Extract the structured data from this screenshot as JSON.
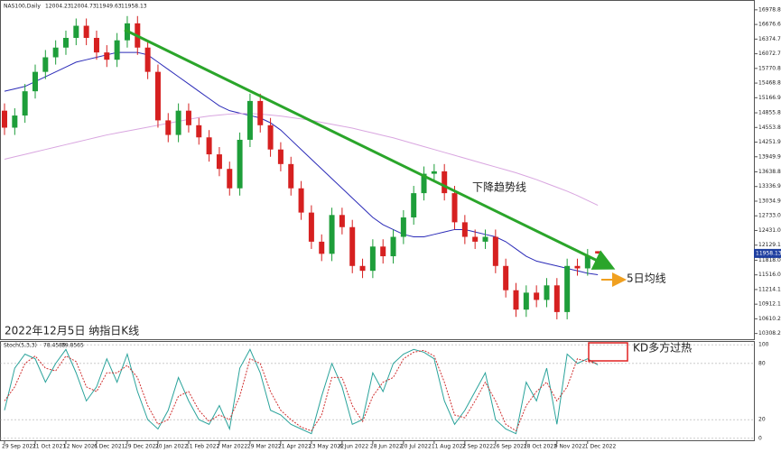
{
  "chart_data": [
    {
      "type": "candlestick",
      "header": "NAS100,Daily",
      "title": "2022年12月5日 纳指日K线",
      "annotations": [
        "下降趋势线",
        "5日均线"
      ],
      "categories": [
        "29 Sep 2021",
        null,
        null,
        "21 Oct 2021",
        null,
        null,
        "12 Nov 2021",
        null,
        null,
        "6 Dec 2021",
        null,
        null,
        "29 Dec 2021",
        null,
        null,
        "20 Jan 2022",
        null,
        null,
        "11 Feb 2022",
        null,
        null,
        "7 Mar 2022",
        null,
        null,
        "29 Mar 2022",
        null,
        null,
        "21 Apr 2022",
        null,
        null,
        "13 May 2022",
        null,
        null,
        "6 Jun 2022",
        null,
        null,
        "28 Jun 2022",
        null,
        null,
        "20 Jul 2022",
        null,
        null,
        "11 Aug 2022",
        null,
        null,
        "2 Sep 2022",
        null,
        null,
        "26 Sep 2022",
        null,
        null,
        "18 Oct 2022",
        null,
        null,
        "9 Nov 2022",
        null,
        null,
        "1 Dec 2022",
        null
      ],
      "open": [
        14900,
        14550,
        14800,
        15300,
        15700,
        16000,
        16200,
        16400,
        16650,
        16400,
        16100,
        15950,
        16350,
        16700,
        16200,
        15700,
        14700,
        14400,
        14900,
        14600,
        14350,
        14000,
        13700,
        13300,
        14300,
        15100,
        14600,
        14100,
        13800,
        13300,
        12800,
        12200,
        11950,
        12750,
        12500,
        11700,
        11600,
        12100,
        11900,
        12300,
        12700,
        13200,
        13600,
        13650,
        13200,
        12600,
        12300,
        12200,
        12300,
        11700,
        11200,
        10800,
        11150,
        11000,
        11300,
        10750,
        11700,
        11650,
        12004.23
      ],
      "high": [
        15050,
        14950,
        15450,
        15850,
        16150,
        16350,
        16550,
        16800,
        16800,
        16550,
        16250,
        16500,
        16850,
        16850,
        16350,
        15850,
        14850,
        15050,
        15050,
        14750,
        14500,
        14150,
        13850,
        14450,
        15250,
        15250,
        14750,
        14250,
        13950,
        13450,
        12950,
        12350,
        12900,
        12900,
        12650,
        11850,
        12250,
        12250,
        12450,
        12850,
        13350,
        13750,
        13800,
        13800,
        13350,
        12750,
        12450,
        12450,
        12450,
        11850,
        11350,
        11300,
        11300,
        11450,
        11450,
        11850,
        11850,
        12050,
        12004.73
      ],
      "low": [
        14400,
        14400,
        14650,
        15150,
        15550,
        15850,
        16050,
        16250,
        16250,
        15950,
        15800,
        15800,
        16200,
        16050,
        15550,
        14550,
        14250,
        14250,
        14450,
        14200,
        13850,
        13550,
        13150,
        13150,
        14150,
        14450,
        13950,
        13650,
        13150,
        12650,
        12050,
        11800,
        11800,
        12350,
        11550,
        11450,
        11450,
        11750,
        11750,
        12150,
        12550,
        13050,
        13450,
        13050,
        12450,
        12150,
        12050,
        12050,
        11550,
        11050,
        10650,
        10650,
        10850,
        10850,
        10600,
        10600,
        11500,
        11500,
        11949.63
      ],
      "close": [
        14550,
        14800,
        15300,
        15700,
        16000,
        16200,
        16400,
        16650,
        16400,
        16100,
        15950,
        16350,
        16700,
        16200,
        15700,
        14700,
        14400,
        14900,
        14600,
        14350,
        14000,
        13700,
        13300,
        14300,
        15100,
        14600,
        14100,
        13800,
        13300,
        12800,
        12200,
        11950,
        12750,
        12500,
        11700,
        11600,
        12100,
        11900,
        12300,
        12700,
        13200,
        13600,
        13650,
        13200,
        12600,
        12300,
        12200,
        12300,
        11700,
        11200,
        10800,
        11150,
        11000,
        11300,
        10750,
        11700,
        11650,
        11900,
        11958.13
      ],
      "up_color": "#1e9e3a",
      "down_color": "#d62020",
      "series": [
        {
          "color": "#2b2bb8",
          "values": [
            15300,
            15350,
            15400,
            15500,
            15600,
            15700,
            15800,
            15900,
            15950,
            16000,
            16050,
            16100,
            16100,
            16100,
            16050,
            15900,
            15750,
            15600,
            15450,
            15300,
            15150,
            15000,
            14900,
            14850,
            14800,
            14750,
            14650,
            14500,
            14300,
            14100,
            13900,
            13700,
            13500,
            13300,
            13100,
            12900,
            12700,
            12550,
            12450,
            12350,
            12300,
            12300,
            12350,
            12400,
            12450,
            12450,
            12400,
            12350,
            12300,
            12200,
            12050,
            11900,
            11800,
            11750,
            11700,
            11650,
            11600,
            11550,
            11520
          ]
        },
        {
          "color": "#d9a6e0",
          "values": [
            13900,
            13950,
            14000,
            14050,
            14100,
            14150,
            14200,
            14250,
            14300,
            14350,
            14400,
            14440,
            14480,
            14520,
            14560,
            14600,
            14640,
            14680,
            14720,
            14760,
            14790,
            14810,
            14830,
            14840,
            14840,
            14830,
            14810,
            14790,
            14760,
            14730,
            14700,
            14660,
            14620,
            14580,
            14540,
            14490,
            14440,
            14390,
            14340,
            14280,
            14220,
            14160,
            14100,
            14040,
            13980,
            13920,
            13860,
            13800,
            13740,
            13680,
            13620,
            13550,
            13480,
            13400,
            13320,
            13240,
            13150,
            13050,
            12950
          ]
        }
      ],
      "ylim": [
        10190,
        17125
      ],
      "yticks": [
        {
          "value": 16978.8,
          "label": "16978.80"
        },
        {
          "value": 16676.65,
          "label": "16676.65"
        },
        {
          "value": 16374.7,
          "label": "16374.70"
        },
        {
          "value": 16072.75,
          "label": "16072.75"
        },
        {
          "value": 15770.8,
          "label": "15770.80"
        },
        {
          "value": 15468.85,
          "label": "15468.85"
        },
        {
          "value": 15166.9,
          "label": "15166.90"
        },
        {
          "value": 14855.8,
          "label": "14855.80"
        },
        {
          "value": 14553.85,
          "label": "14553.85"
        },
        {
          "value": 14251.9,
          "label": "14251.90"
        },
        {
          "value": 13949.95,
          "label": "13949.95"
        },
        {
          "value": 13638.85,
          "label": "13638.85"
        },
        {
          "value": 13336.9,
          "label": "13336.90"
        },
        {
          "value": 13034.95,
          "label": "13034.95"
        },
        {
          "value": 12733,
          "label": "12733.00"
        },
        {
          "value": 12431.05,
          "label": "12431.05"
        },
        {
          "value": 12129.1,
          "label": "12129.10"
        },
        {
          "value": 11818,
          "label": "11818.00"
        },
        {
          "value": 11516.05,
          "label": "11516.05"
        },
        {
          "value": 11214.1,
          "label": "11214.10"
        },
        {
          "value": 10912.15,
          "label": "10912.15"
        },
        {
          "value": 10610.2,
          "label": "10610.20"
        },
        {
          "value": 10308.25,
          "label": "10308.25"
        }
      ]
    },
    {
      "type": "line",
      "title": "Stoch(5,3,3)",
      "annotation": "KD多方过热",
      "series": [
        {
          "color": "#2aa39b",
          "values": [
            30,
            75,
            90,
            85,
            60,
            80,
            95,
            70,
            40,
            55,
            85,
            60,
            90,
            50,
            20,
            10,
            30,
            65,
            40,
            20,
            15,
            35,
            10,
            75,
            95,
            70,
            30,
            25,
            15,
            10,
            5,
            45,
            80,
            55,
            15,
            20,
            70,
            50,
            80,
            90,
            95,
            92,
            85,
            40,
            15,
            30,
            50,
            70,
            20,
            10,
            5,
            60,
            40,
            75,
            15,
            90,
            80,
            85,
            78.4589
          ]
        },
        {
          "color": "#d03030",
          "values": [
            40,
            55,
            80,
            88,
            75,
            72,
            88,
            82,
            55,
            50,
            70,
            70,
            78,
            65,
            35,
            15,
            20,
            45,
            50,
            30,
            18,
            25,
            20,
            45,
            85,
            80,
            50,
            30,
            20,
            12,
            8,
            25,
            65,
            65,
            35,
            18,
            45,
            60,
            65,
            85,
            92,
            94,
            88,
            60,
            25,
            22,
            40,
            60,
            40,
            15,
            8,
            35,
            50,
            60,
            40,
            55,
            85,
            82,
            79.8565
          ]
        }
      ],
      "ylim": [
        -3,
        103
      ],
      "yticks": [
        100,
        80,
        20,
        0
      ]
    }
  ]
}
